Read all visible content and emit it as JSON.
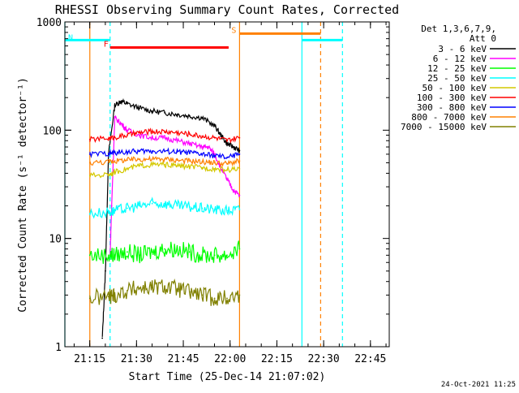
{
  "chart_data": {
    "type": "line",
    "title": "RHESSI Observing Summary Count Rates, Corrected",
    "xlabel": "Start Time (25-Dec-14 21:07:02)",
    "ylabel": "Corrected Count Rate (s⁻¹ detector⁻¹)",
    "footer": "24-Oct-2021 11:25",
    "yscale": "log",
    "ylim": [
      1,
      1000
    ],
    "xlim_minutes_from_start": [
      0,
      104
    ],
    "x_ticks": [
      {
        "label": "21:15",
        "minute": 7.97
      },
      {
        "label": "21:30",
        "minute": 22.97
      },
      {
        "label": "21:45",
        "minute": 37.97
      },
      {
        "label": "22:00",
        "minute": 52.97
      },
      {
        "label": "22:15",
        "minute": 67.97
      },
      {
        "label": "22:30",
        "minute": 82.97
      },
      {
        "label": "22:45",
        "minute": 97.97
      }
    ],
    "y_ticks": [
      {
        "label": "1",
        "value": 1
      },
      {
        "label": "10",
        "value": 10
      },
      {
        "label": "100",
        "value": 100
      },
      {
        "label": "1000",
        "value": 1000
      }
    ],
    "legend": {
      "header": [
        "Det 1,3,6,7,9,",
        "Att 0"
      ],
      "entries": [
        {
          "label": "3 - 6 keV",
          "color": "#000000"
        },
        {
          "label": "6 - 12 keV",
          "color": "#ff00ff"
        },
        {
          "label": "12 - 25 keV",
          "color": "#00ff00"
        },
        {
          "label": "25 - 50 keV",
          "color": "#00ffff"
        },
        {
          "label": "50 - 100 keV",
          "color": "#d4c800"
        },
        {
          "label": "100 - 300 keV",
          "color": "#ff0000"
        },
        {
          "label": "300 - 800 keV",
          "color": "#0000ff"
        },
        {
          "label": "800 - 7000 keV",
          "color": "#ff8000"
        },
        {
          "label": "7000 - 15000 keV",
          "color": "#808000"
        }
      ]
    },
    "series": [
      {
        "name": "3 - 6 keV",
        "color": "#000000",
        "x": [
          12,
          13,
          14,
          16,
          18,
          20,
          24,
          28,
          32,
          36,
          40,
          44,
          48,
          50,
          52,
          54,
          56
        ],
        "y": [
          1.2,
          5,
          60,
          170,
          185,
          175,
          160,
          150,
          145,
          140,
          135,
          130,
          110,
          90,
          75,
          70,
          65
        ]
      },
      {
        "name": "6 - 12 keV",
        "color": "#ff00ff",
        "x": [
          14.5,
          15,
          16,
          18,
          20,
          24,
          28,
          32,
          36,
          40,
          44,
          46,
          48,
          50,
          52,
          54,
          56
        ],
        "y": [
          7,
          20,
          130,
          115,
          100,
          90,
          85,
          85,
          80,
          75,
          70,
          70,
          60,
          45,
          35,
          28,
          25
        ]
      },
      {
        "name": "12 - 25 keV",
        "color": "#00ff00",
        "x": [
          8,
          14,
          16,
          20,
          24,
          28,
          32,
          36,
          40,
          44,
          48,
          52,
          56
        ],
        "y": [
          7,
          7,
          7,
          7.5,
          7,
          7.5,
          8,
          8,
          7.5,
          7,
          7,
          7,
          8
        ]
      },
      {
        "name": "25 - 50 keV",
        "color": "#00ffff",
        "x": [
          8,
          14,
          16,
          20,
          24,
          28,
          32,
          36,
          40,
          44,
          48,
          52,
          56
        ],
        "y": [
          17,
          17.5,
          18,
          19,
          20,
          21,
          21,
          20,
          19.5,
          19,
          18.5,
          18,
          18.5
        ]
      },
      {
        "name": "50 - 100 keV",
        "color": "#d4c800",
        "x": [
          8,
          14,
          16,
          20,
          24,
          28,
          32,
          36,
          40,
          44,
          48,
          52,
          56
        ],
        "y": [
          38,
          39,
          41,
          44,
          47,
          48,
          48,
          47,
          46,
          45,
          44,
          43,
          44
        ]
      },
      {
        "name": "100 - 300 keV",
        "color": "#ff0000",
        "x": [
          8,
          14,
          16,
          20,
          24,
          28,
          32,
          36,
          40,
          44,
          48,
          52,
          56
        ],
        "y": [
          82,
          84,
          86,
          90,
          95,
          97,
          97,
          95,
          92,
          88,
          85,
          80,
          85
        ]
      },
      {
        "name": "300 - 800 keV",
        "color": "#0000ff",
        "x": [
          8,
          14,
          16,
          20,
          24,
          28,
          32,
          36,
          40,
          44,
          48,
          52,
          56
        ],
        "y": [
          60,
          61,
          62,
          63,
          64,
          64,
          64,
          63,
          62,
          60,
          58,
          56,
          60
        ]
      },
      {
        "name": "800 - 7000 keV",
        "color": "#ff8000",
        "x": [
          8,
          14,
          16,
          20,
          24,
          28,
          32,
          36,
          40,
          44,
          48,
          52,
          56
        ],
        "y": [
          50,
          51,
          52,
          53,
          54,
          54,
          54,
          53,
          52,
          51,
          50,
          49,
          52
        ]
      },
      {
        "name": "7000 - 15000 keV",
        "color": "#808000",
        "x": [
          8,
          14,
          16,
          20,
          24,
          28,
          32,
          36,
          40,
          44,
          48,
          52,
          56
        ],
        "y": [
          2.8,
          2.9,
          3,
          3.3,
          3.5,
          3.5,
          3.6,
          3.4,
          3.2,
          3,
          2.8,
          2.8,
          3
        ]
      }
    ],
    "flags": [
      {
        "letter": "N",
        "color": "#00ffff",
        "x_start": 0,
        "x_end": 14.5,
        "level": 680
      },
      {
        "letter": "F",
        "color": "#ff0000",
        "x_start": 14.5,
        "x_end": 52.5,
        "level": 580
      },
      {
        "letter": "S",
        "color": "#ff8000",
        "x_start": 56,
        "x_end": 82,
        "level": 780
      },
      {
        "letter": "",
        "color": "#00ffff",
        "x_start": 76,
        "x_end": 89,
        "level": 680
      }
    ],
    "vlines": [
      {
        "x": 0,
        "color": "#00ffff",
        "style": "solid"
      },
      {
        "x": 14.5,
        "color": "#00ffff",
        "style": "dashed"
      },
      {
        "x": 8,
        "color": "#ff8000",
        "style": "solid"
      },
      {
        "x": 56,
        "color": "#ff8000",
        "style": "solid"
      },
      {
        "x": 76,
        "color": "#00ffff",
        "style": "solid"
      },
      {
        "x": 82,
        "color": "#ff8000",
        "style": "dashed"
      },
      {
        "x": 89,
        "color": "#00ffff",
        "style": "dashed"
      }
    ]
  }
}
